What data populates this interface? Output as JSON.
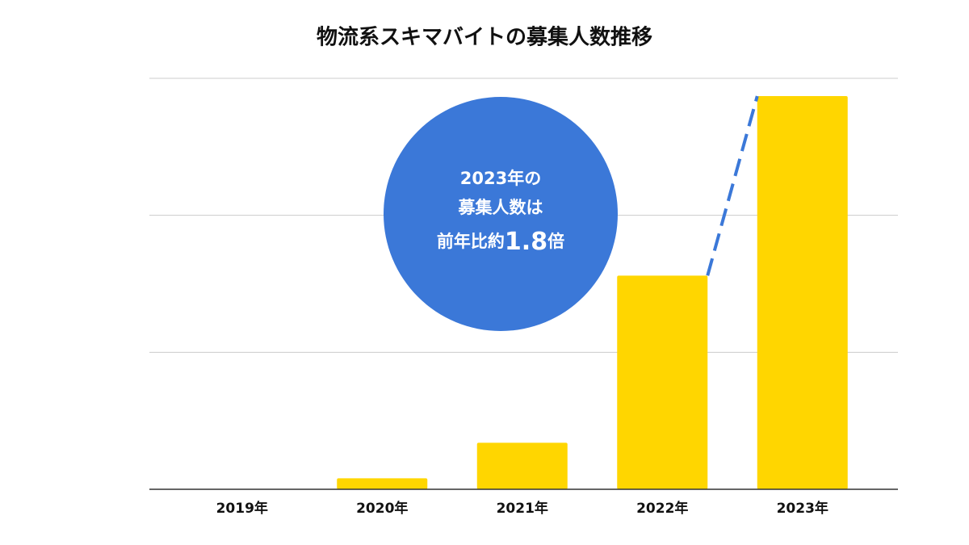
{
  "chart_data": {
    "type": "bar",
    "title": "物流系スキマバイトの募集人数推移",
    "categories": [
      "2019年",
      "2020年",
      "2021年",
      "2022年",
      "2023年"
    ],
    "values": [
      0,
      0.08,
      0.34,
      1.56,
      2.87
    ],
    "color": "#ffd600",
    "ylim": [
      0,
      3
    ],
    "yticks": [
      0,
      1,
      2,
      3
    ],
    "grid": true,
    "annotation": {
      "lines": [
        "2023年の",
        "募集人数は"
      ],
      "last_line": [
        "前年比約",
        "1.8",
        "倍"
      ],
      "color": "#3b78d8"
    }
  }
}
